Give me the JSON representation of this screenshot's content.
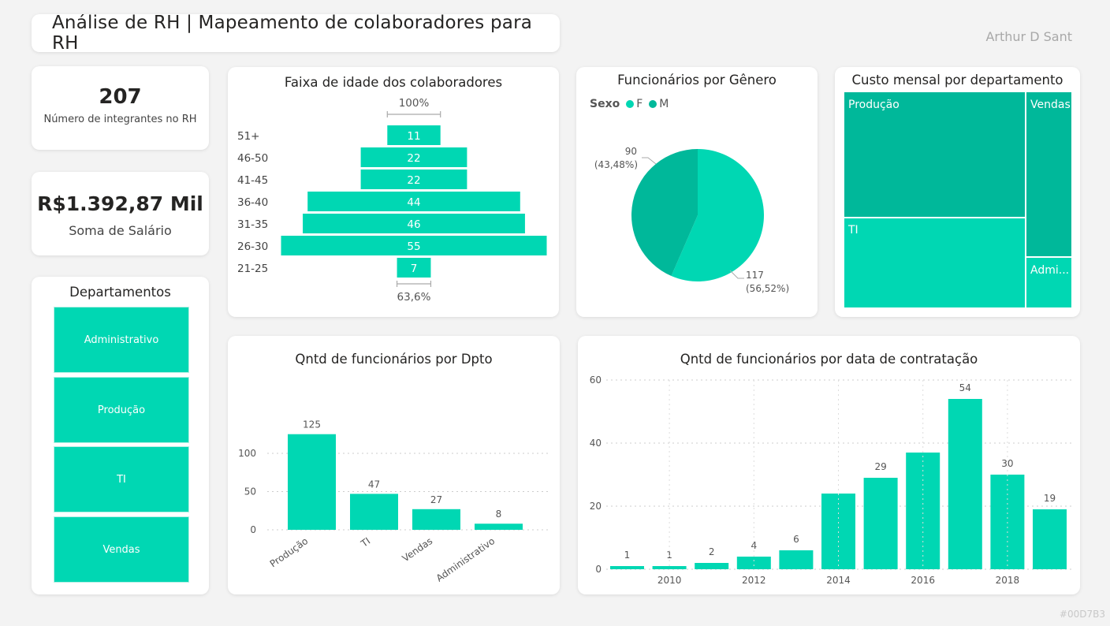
{
  "header": {
    "title": "Análise de RH | Mapeamento de colaboradores para RH",
    "author": "Arthur D Sant",
    "footer_code": "#00D7B3"
  },
  "colors": {
    "accent": "#00d7b3",
    "accent_dark": "#00b89a",
    "background": "#f3f3f3"
  },
  "kpis": {
    "employees": {
      "value": "207",
      "label": "Número de integrantes no RH"
    },
    "salary": {
      "value": "R$1.392,87 Mil",
      "label": "Soma de Salário"
    }
  },
  "departments": {
    "title": "Departamentos",
    "items": [
      {
        "label": "Administrativo"
      },
      {
        "label": "Produção"
      },
      {
        "label": "TI"
      },
      {
        "label": "Vendas"
      }
    ]
  },
  "chart_data": [
    {
      "id": "age",
      "type": "bar",
      "title": "Faixa de idade dos colaboradores",
      "orientation": "funnel",
      "categories": [
        "51+",
        "46-50",
        "41-45",
        "36-40",
        "31-35",
        "26-30",
        "21-25"
      ],
      "values": [
        11,
        22,
        22,
        44,
        46,
        55,
        7
      ],
      "top_label": "100%",
      "bottom_label": "63,6%"
    },
    {
      "id": "gender",
      "type": "pie",
      "title": "Funcionários por Gênero",
      "legend_title": "Sexo",
      "legend": [
        "F",
        "M"
      ],
      "slices": [
        {
          "name": "F",
          "value": 117,
          "label": "117",
          "pct": "(56,52%)"
        },
        {
          "name": "M",
          "value": 90,
          "label": "90",
          "pct": "(43,48%)"
        }
      ]
    },
    {
      "id": "cost",
      "type": "heatmap",
      "subtype": "treemap",
      "title": "Custo mensal por departamento",
      "labels": [
        "Produção",
        "Vendas",
        "TI",
        "Admi..."
      ]
    },
    {
      "id": "dept",
      "type": "bar",
      "title": "Qntd de funcionários por Dpto",
      "categories": [
        "Produção",
        "TI",
        "Vendas",
        "Administrativo"
      ],
      "values": [
        125,
        47,
        27,
        8
      ],
      "ylim": [
        0,
        135
      ],
      "yticks": [
        0,
        50,
        100
      ]
    },
    {
      "id": "hire",
      "type": "bar",
      "title": "Qntd de funcionários por data de contratação",
      "x": [
        2009,
        2010,
        2011,
        2012,
        2013,
        2014,
        2015,
        2016,
        2017,
        2018,
        2019
      ],
      "values": [
        1,
        1,
        2,
        4,
        6,
        24,
        29,
        37,
        54,
        30,
        19
      ],
      "value_labels": [
        "1",
        "1",
        "2",
        "4",
        "6",
        "",
        "29",
        "",
        "54",
        "30",
        "19"
      ],
      "xticks": [
        "2010",
        "2012",
        "2014",
        "2016",
        "2018"
      ],
      "ylim": [
        0,
        60
      ],
      "yticks": [
        0,
        20,
        40,
        60
      ]
    }
  ]
}
